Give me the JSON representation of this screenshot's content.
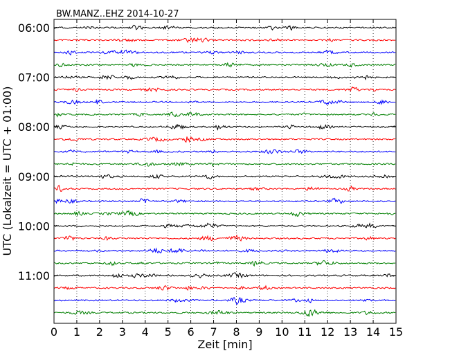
{
  "chart_data": {
    "type": "line",
    "title": "BW.MANZ..EHZ 2014-10-27",
    "xlabel": "Zeit  [min]",
    "ylabel": "UTC (Lokalzeit = UTC + 01:00)",
    "xlim": [
      0,
      15
    ],
    "xticks": [
      "0",
      "1",
      "2",
      "3",
      "4",
      "5",
      "6",
      "7",
      "8",
      "9",
      "10",
      "11",
      "12",
      "13",
      "14",
      "15"
    ],
    "yticks": [
      "06:00",
      "07:00",
      "08:00",
      "09:00",
      "10:00",
      "11:00"
    ],
    "row_interval_min": 15,
    "row_count": 24,
    "trace_colors": [
      "#000000",
      "#ff0000",
      "#0000ff",
      "#007f00"
    ],
    "grid": {
      "vertical_dotted": true
    }
  }
}
